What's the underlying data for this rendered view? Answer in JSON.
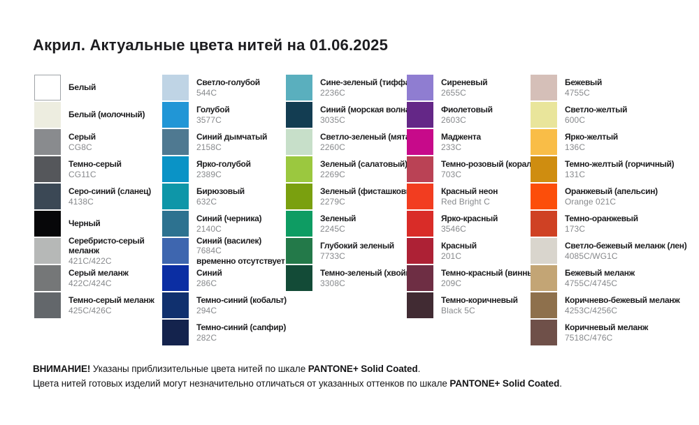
{
  "title": "Акрил. Актуальные цвета нитей на 01.06.2025",
  "columns": [
    {
      "items": [
        {
          "name": "Белый",
          "code": "",
          "color": "#FFFFFF",
          "border": true
        },
        {
          "name": "Белый (молочный)",
          "code": "",
          "color": "#EDEDE0"
        },
        {
          "name": "Серый",
          "code": "CG8C",
          "color": "#898B8E"
        },
        {
          "name": "Темно-серый",
          "code": "CG11C",
          "color": "#55575B"
        },
        {
          "name": "Серо-синий (сланец)",
          "code": "4138C",
          "color": "#3B4855"
        },
        {
          "name": "Черный",
          "code": "",
          "color": "#070709"
        },
        {
          "name": "Серебристо-серый\nмеланж",
          "code": "421C/422C",
          "color": "#B6B8B7"
        },
        {
          "name": "Серый меланж",
          "code": "422C/424C",
          "color": "#757778"
        },
        {
          "name": "Темно-серый меланж",
          "code": "425C/426C",
          "color": "#63676B"
        }
      ]
    },
    {
      "items": [
        {
          "name": "Светло-голубой",
          "code": "544C",
          "color": "#BFD4E5"
        },
        {
          "name": "Голубой",
          "code": "3577C",
          "color": "#2196D6"
        },
        {
          "name": "Синий дымчатый",
          "code": "2158C",
          "color": "#4F7991"
        },
        {
          "name": "Ярко-голубой",
          "code": "2389C",
          "color": "#0A93C6"
        },
        {
          "name": "Бирюзовый",
          "code": "632C",
          "color": "#0E96A8"
        },
        {
          "name": "Синий (черника)",
          "code": "2140C",
          "color": "#2D7290"
        },
        {
          "name": "Синий (василек)",
          "code": "7684C",
          "color": "#3E66AF",
          "note": "временно отсутствует"
        },
        {
          "name": "Синий",
          "code": "286C",
          "color": "#0B2EA3"
        },
        {
          "name": "Темно-синий (кобальт)",
          "code": "294C",
          "color": "#10306E"
        },
        {
          "name": "Темно-синий (сапфир)",
          "code": "282C",
          "color": "#14234D"
        }
      ]
    },
    {
      "items": [
        {
          "name": "Сине-зеленый (тиффани)",
          "code": "2236C",
          "color": "#5AAFBE"
        },
        {
          "name": "Синий (морская волна)",
          "code": "3035C",
          "color": "#133D52"
        },
        {
          "name": "Светло-зеленый (мята)",
          "code": "2260C",
          "color": "#C7DFC9"
        },
        {
          "name": "Зеленый (салатовый)",
          "code": "2269C",
          "color": "#9BC83F"
        },
        {
          "name": "Зеленый (фисташковый)",
          "code": "2279C",
          "color": "#7AA00F"
        },
        {
          "name": "Зеленый",
          "code": "2245C",
          "color": "#0E9C63"
        },
        {
          "name": "Глубокий зеленый",
          "code": "7733C",
          "color": "#237949"
        },
        {
          "name": "Темно-зеленый (хвойный)",
          "code": "3308C",
          "color": "#134B37"
        }
      ]
    },
    {
      "items": [
        {
          "name": "Сиреневый",
          "code": "2655C",
          "color": "#8F7DD1"
        },
        {
          "name": "Фиолетовый",
          "code": "2603C",
          "color": "#642787"
        },
        {
          "name": "Маджента",
          "code": "233C",
          "color": "#C70A8A"
        },
        {
          "name": "Темно-розовый (коралл)",
          "code": "703C",
          "color": "#BA4255"
        },
        {
          "name": "Красный неон",
          "code": "Red Bright C",
          "color": "#F23D20"
        },
        {
          "name": "Ярко-красный",
          "code": "3546C",
          "color": "#D92C28"
        },
        {
          "name": "Красный",
          "code": "201C",
          "color": "#AD2135"
        },
        {
          "name": "Темно-красный (винный)",
          "code": "209C",
          "color": "#6E2E44"
        },
        {
          "name": "Темно-коричневый",
          "code": "Black 5C",
          "color": "#412B33"
        }
      ]
    },
    {
      "items": [
        {
          "name": "Бежевый",
          "code": "4755C",
          "color": "#D5BFB8"
        },
        {
          "name": "Светло-желтый",
          "code": "600C",
          "color": "#E9E59B"
        },
        {
          "name": "Ярко-желтый",
          "code": "136C",
          "color": "#F9BD47"
        },
        {
          "name": "Темно-желтый (горчичный)",
          "code": "131C",
          "color": "#CF8D10"
        },
        {
          "name": "Оранжевый (апельсин)",
          "code": "Orange 021C",
          "color": "#FC4E0A"
        },
        {
          "name": "Темно-оранжевый",
          "code": "173C",
          "color": "#CF4124"
        },
        {
          "name": "Светло-бежевый меланж (лен)",
          "code": "4085C/WG1C",
          "color": "#D9D5CD"
        },
        {
          "name": "Бежевый меланж",
          "code": "4755C/4745C",
          "color": "#C3A575"
        },
        {
          "name": "Коричнево-бежевый меланж",
          "code": "4253C/4256C",
          "color": "#8E704C"
        },
        {
          "name": "Коричневый меланж",
          "code": "7518C/476C",
          "color": "#6F5049"
        }
      ]
    }
  ],
  "footer": {
    "attention": "ВНИМАНИЕ!",
    "line1_text": " Указаны приблизительные цвета нитей по шкале ",
    "pantone_scale": "PANTONE+ Solid Coated",
    "line1_end": ".",
    "line2_text": "Цвета нитей готовых изделий могут незначительно отличаться от указанных оттенков по шкале ",
    "pantone_scale2": "PANTONE+ Solid Coated",
    "line2_end": "."
  }
}
